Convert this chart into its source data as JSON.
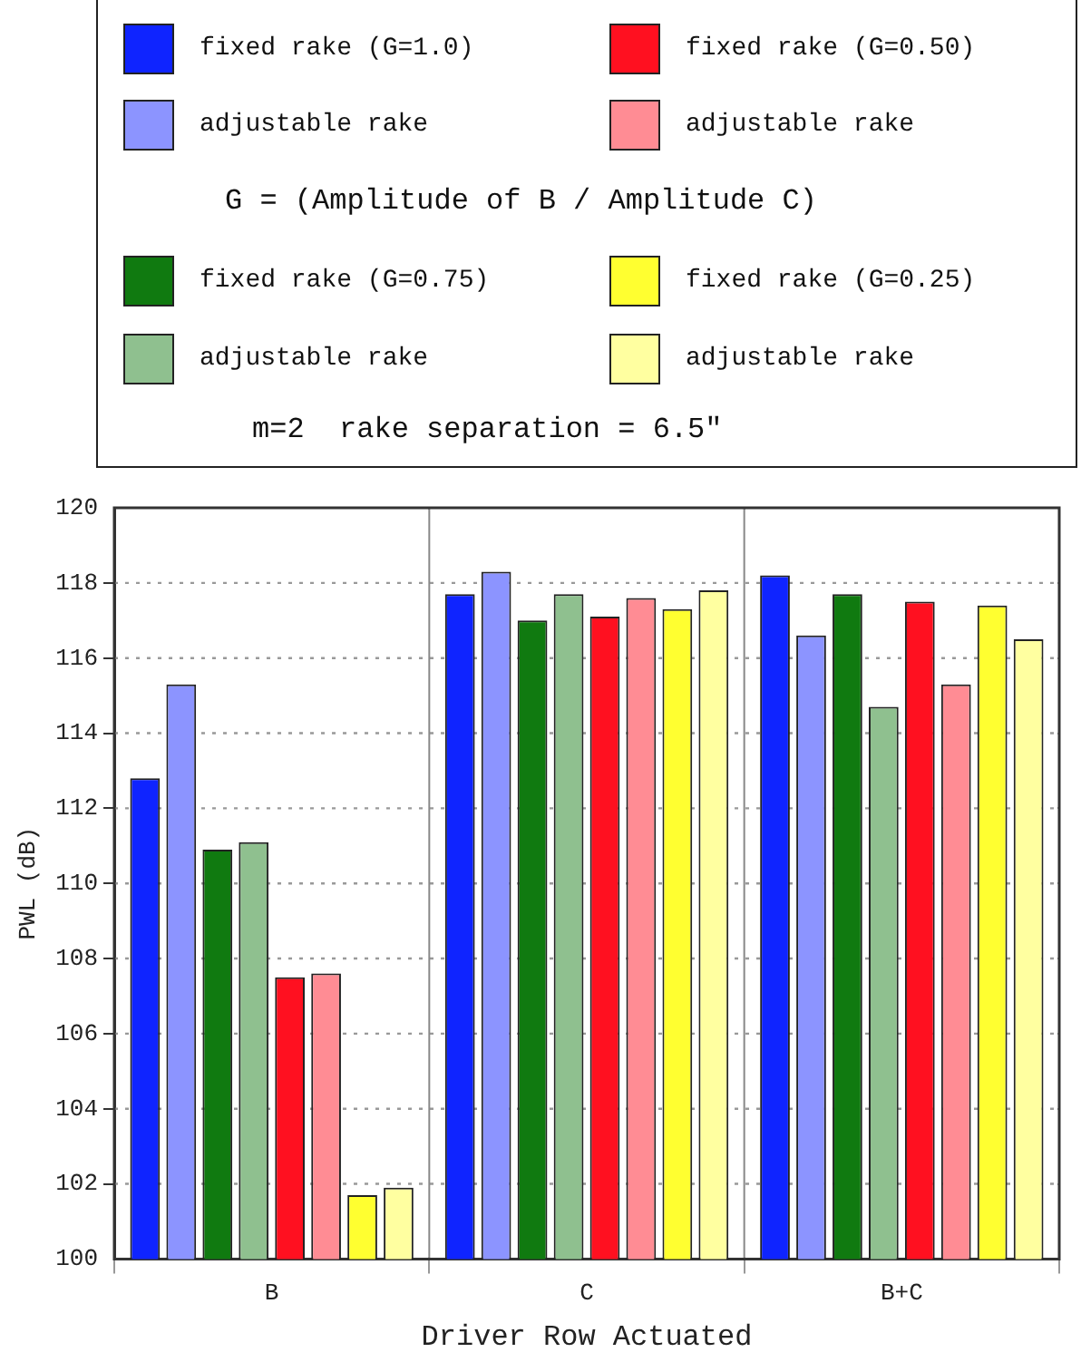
{
  "chart_data": {
    "type": "bar",
    "xlabel": "Driver Row Actuated",
    "ylabel": "PWL (dB)",
    "categories": [
      "B",
      "C",
      "B+C"
    ],
    "series": [
      {
        "name": "fixed rake (G=1.0)",
        "color": "#0f24ff",
        "values": [
          112.8,
          117.7,
          118.2
        ]
      },
      {
        "name": "adjustable rake",
        "color": "#8c94ff",
        "values": [
          115.3,
          118.3,
          116.6
        ]
      },
      {
        "name": "fixed rake (G=0.75)",
        "color": "#107a10",
        "values": [
          110.9,
          117.0,
          117.7
        ]
      },
      {
        "name": "adjustable rake",
        "color": "#8fc08f",
        "values": [
          111.1,
          117.7,
          114.7
        ]
      },
      {
        "name": "fixed rake (G=0.50)",
        "color": "#ff1020",
        "values": [
          107.5,
          117.1,
          117.5
        ]
      },
      {
        "name": "adjustable rake",
        "color": "#ff8c94",
        "values": [
          107.6,
          117.6,
          115.3
        ]
      },
      {
        "name": "fixed rake (G=0.25)",
        "color": "#ffff30",
        "values": [
          101.7,
          117.3,
          117.4
        ]
      },
      {
        "name": "adjustable rake",
        "color": "#ffffa0",
        "values": [
          101.9,
          117.8,
          116.5
        ]
      }
    ],
    "ylim": [
      100,
      120
    ],
    "yticks": [
      100,
      102,
      104,
      106,
      108,
      110,
      112,
      114,
      116,
      118,
      120
    ],
    "grid": true,
    "legend": "top",
    "annotations": [
      "G = (Amplitude of B / Amplitude C)",
      "m=2  rake separation = 6.5\""
    ]
  }
}
